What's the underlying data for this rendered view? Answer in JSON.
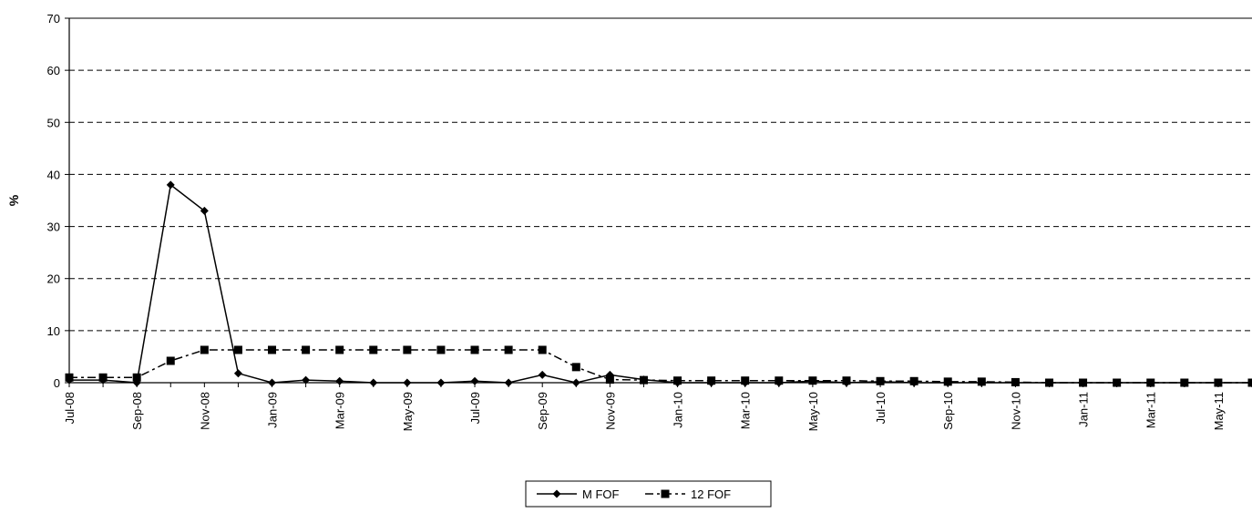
{
  "chart_data": {
    "type": "line",
    "title": "",
    "xlabel": "",
    "ylabel": "%",
    "ylim": [
      0,
      70
    ],
    "yticks": [
      0,
      10,
      20,
      30,
      40,
      50,
      60,
      70
    ],
    "grid": "horizontal dashed",
    "legend_position": "bottom-center",
    "x": [
      "Jul-08",
      "Aug-08",
      "Sep-08",
      "Oct-08",
      "Nov-08",
      "Dec-08",
      "Jan-09",
      "Feb-09",
      "Mar-09",
      "Apr-09",
      "May-09",
      "Jun-09",
      "Jul-09",
      "Aug-09",
      "Sep-09",
      "Oct-09",
      "Nov-09",
      "Dec-09",
      "Jan-10",
      "Feb-10",
      "Mar-10",
      "Apr-10",
      "May-10",
      "Jun-10",
      "Jul-10",
      "Aug-10",
      "Sep-10",
      "Oct-10",
      "Nov-10",
      "Dec-10",
      "Jan-11",
      "Feb-11",
      "Mar-11",
      "Apr-11",
      "May-11",
      "Jun-11"
    ],
    "x_tick_labels": [
      "Jul-08",
      "Sep-08",
      "Nov-08",
      "Jan-09",
      "Mar-09",
      "May-09",
      "Jul-09",
      "Sep-09",
      "Nov-09",
      "Jan-10",
      "Mar-10",
      "May-10",
      "Jul-10",
      "Sep-10",
      "Nov-10",
      "Jan-11",
      "Mar-11",
      "May-11"
    ],
    "series": [
      {
        "name": "M FOF",
        "color": "#000000",
        "line_style": "solid",
        "marker": "diamond",
        "values": [
          0.5,
          0.5,
          0,
          38,
          33,
          1.8,
          0,
          0.5,
          0.3,
          0,
          0,
          0,
          0.3,
          0,
          1.5,
          0,
          1.5,
          0.6,
          0,
          0,
          0,
          0,
          0.3,
          0,
          0.2,
          0,
          0,
          0,
          0,
          0,
          0,
          0,
          0,
          0,
          0,
          0
        ]
      },
      {
        "name": "12 FOF",
        "color": "#000000",
        "line_style": "dash-dot",
        "marker": "square",
        "values": [
          1,
          1,
          1,
          4.2,
          6.3,
          6.3,
          6.3,
          6.3,
          6.3,
          6.3,
          6.3,
          6.3,
          6.3,
          6.3,
          6.3,
          3,
          0.6,
          0.5,
          0.4,
          0.4,
          0.4,
          0.4,
          0.4,
          0.4,
          0.3,
          0.3,
          0.2,
          0.2,
          0.1,
          0,
          0,
          0,
          0,
          0,
          0,
          0
        ]
      }
    ]
  }
}
